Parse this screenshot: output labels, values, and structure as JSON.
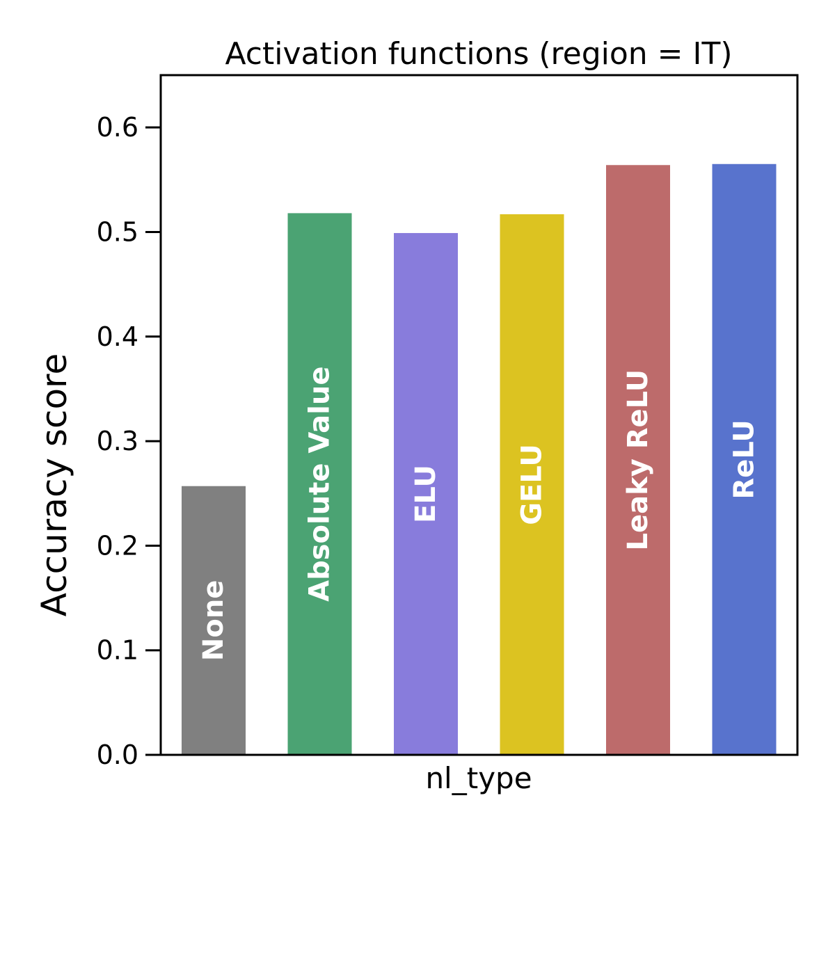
{
  "chart_data": {
    "type": "bar",
    "title": "Activation functions (region = IT)",
    "xlabel": "nl_type",
    "ylabel": "Accuracy score",
    "ylim": [
      0,
      0.65
    ],
    "yticks": [
      0.0,
      0.1,
      0.2,
      0.3,
      0.4,
      0.5,
      0.6
    ],
    "ytick_labels": [
      "0.0",
      "0.1",
      "0.2",
      "0.3",
      "0.4",
      "0.5",
      "0.6"
    ],
    "grid": false,
    "legend": "none",
    "categories": [
      "None",
      "Absolute Value",
      "ELU",
      "GELU",
      "Leaky ReLU",
      "ReLU"
    ],
    "values": [
      0.257,
      0.518,
      0.499,
      0.517,
      0.564,
      0.565
    ],
    "colors": [
      "#808080",
      "#4ba373",
      "#887cdc",
      "#dcc321",
      "#bd6b6b",
      "#5873cd"
    ]
  }
}
